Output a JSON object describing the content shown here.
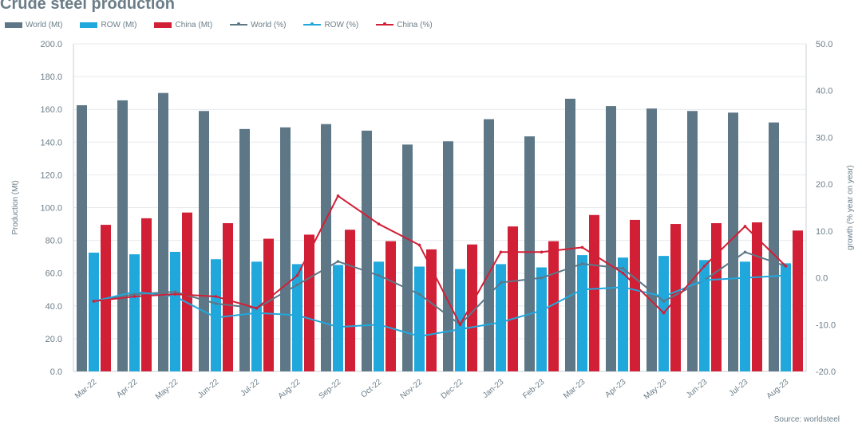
{
  "chart_data": {
    "type": "bar",
    "title": "Crude steel production",
    "categories": [
      "Mar-22",
      "Apr-22",
      "May-22",
      "Jun-22",
      "Jul-22",
      "Aug-22",
      "Sep-22",
      "Oct-22",
      "Nov-22",
      "Dec-22",
      "Jan-23",
      "Feb-23",
      "Mar-23",
      "Apr-23",
      "May-23",
      "Jun-23",
      "Jul-23",
      "Aug-23"
    ],
    "ylabel": "Production (Mt)",
    "ylim": [
      0,
      200
    ],
    "yticks": [
      "0.0",
      "20.0",
      "40.0",
      "60.0",
      "80.0",
      "100.0",
      "120.0",
      "140.0",
      "160.0",
      "180.0",
      "200.0"
    ],
    "y2label": "growth (% year on year)",
    "y2lim": [
      -20,
      50
    ],
    "y2ticks": [
      "-20.0",
      "-10.0",
      "0.0",
      "10.0",
      "20.0",
      "30.0",
      "40.0",
      "50.0"
    ],
    "grid": true,
    "legend_position": "top-left",
    "series": [
      {
        "name": "World (Mt)",
        "kind": "bar",
        "axis": "left",
        "color": "#5e7787",
        "values": [
          162.5,
          165.5,
          170,
          159,
          148,
          149,
          151,
          147,
          138.5,
          140.5,
          154,
          143.5,
          166.5,
          162,
          160.5,
          159,
          158,
          152
        ]
      },
      {
        "name": "ROW (Mt)",
        "kind": "bar",
        "axis": "left",
        "color": "#20a8dd",
        "values": [
          72.5,
          71.5,
          73,
          68.5,
          67,
          65.5,
          65,
          67,
          64,
          62.5,
          65.5,
          63.5,
          71,
          69.5,
          70.5,
          68,
          67,
          66
        ]
      },
      {
        "name": "China (Mt)",
        "kind": "bar",
        "axis": "left",
        "color": "#d11f36",
        "values": [
          89.5,
          93.5,
          97,
          90.5,
          81,
          83.5,
          86.5,
          79.5,
          74.5,
          77.5,
          88.5,
          79.5,
          95.5,
          92.5,
          90,
          90.5,
          91,
          86
        ]
      },
      {
        "name": "World (%)",
        "kind": "line",
        "axis": "right",
        "color": "#5e7787",
        "values": [
          -5,
          -3.5,
          -3,
          -5.5,
          -6.5,
          -1.5,
          3.5,
          0.5,
          -3.5,
          -10,
          -1,
          0,
          3,
          2,
          -5,
          -0.5,
          5.5,
          2.5
        ]
      },
      {
        "name": "ROW (%)",
        "kind": "line",
        "axis": "right",
        "color": "#20a8dd",
        "values": [
          -5,
          -3,
          -4,
          -8.5,
          -7.5,
          -8,
          -10.5,
          -10,
          -12.5,
          -11,
          -9.5,
          -7,
          -2.5,
          -2,
          -4,
          -0.5,
          0,
          0.5
        ]
      },
      {
        "name": "China (%)",
        "kind": "line",
        "axis": "right",
        "color": "#d11f36",
        "values": [
          -5,
          -4,
          -3.5,
          -4,
          -6.5,
          0.5,
          17.5,
          11.5,
          7,
          -10,
          5.5,
          5.5,
          6.5,
          1,
          -7.5,
          2.5,
          11,
          2.5
        ]
      }
    ],
    "source": "Source: worldsteel"
  }
}
